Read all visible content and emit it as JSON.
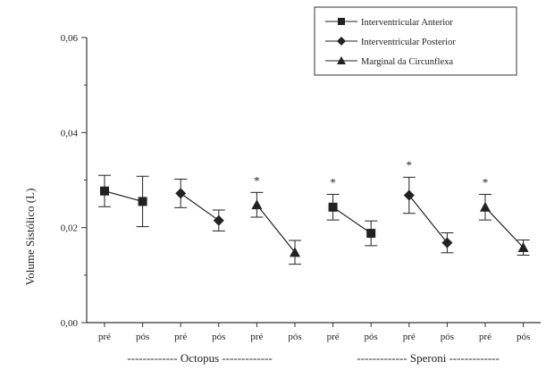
{
  "chart_data": {
    "type": "line",
    "ylabel": "Volume Sistólico (L)",
    "xlabel": "",
    "ylim": [
      0,
      0.06
    ],
    "y_ticks": [
      "0,00",
      "0,02",
      "0,04",
      "0,06"
    ],
    "y_tick_values": [
      0,
      0.02,
      0.04,
      0.06
    ],
    "categories": [
      "pré",
      "pós",
      "pré",
      "pós",
      "pré",
      "pós",
      "pré",
      "pós",
      "pré",
      "pós",
      "pré",
      "pós"
    ],
    "groups": [
      {
        "label": "------------- Octopus -------------",
        "from": 0,
        "to": 5
      },
      {
        "label": "------------- Speroni -------------",
        "from": 6,
        "to": 11
      }
    ],
    "legend_position": "top-right",
    "series": [
      {
        "name": "Interventricular Anterior",
        "marker": "square",
        "points": [
          {
            "x": 0,
            "y": 0.0277,
            "err": 0.0033
          },
          {
            "x": 1,
            "y": 0.0255,
            "err": 0.0053
          }
        ]
      },
      {
        "name": "Interventricular Posterior",
        "marker": "diamond",
        "points": [
          {
            "x": 2,
            "y": 0.0272,
            "err": 0.003
          },
          {
            "x": 3,
            "y": 0.0215,
            "err": 0.0022
          }
        ]
      },
      {
        "name": "Marginal da Circunflexa",
        "marker": "triangle",
        "points": [
          {
            "x": 4,
            "y": 0.0248,
            "err": 0.0026
          },
          {
            "x": 5,
            "y": 0.0148,
            "err": 0.0025
          }
        ]
      },
      {
        "name": "Interventricular Anterior",
        "marker": "square",
        "points": [
          {
            "x": 6,
            "y": 0.0243,
            "err": 0.0027
          },
          {
            "x": 7,
            "y": 0.0188,
            "err": 0.0026
          }
        ]
      },
      {
        "name": "Interventricular Posterior",
        "marker": "diamond",
        "points": [
          {
            "x": 8,
            "y": 0.0268,
            "err": 0.0038
          },
          {
            "x": 9,
            "y": 0.0168,
            "err": 0.0021
          }
        ]
      },
      {
        "name": "Marginal da Circunflexa",
        "marker": "triangle",
        "points": [
          {
            "x": 10,
            "y": 0.0243,
            "err": 0.0027
          },
          {
            "x": 11,
            "y": 0.0158,
            "err": 0.0016
          }
        ]
      }
    ],
    "annotations": [
      {
        "text": "*",
        "x": 4,
        "y": 0.0302
      },
      {
        "text": "*",
        "x": 6,
        "y": 0.0298
      },
      {
        "text": "*",
        "x": 8,
        "y": 0.0335
      },
      {
        "text": "*",
        "x": 10,
        "y": 0.0298
      }
    ],
    "legend": [
      {
        "name": "Interventricular Anterior",
        "marker": "square"
      },
      {
        "name": "Interventricular Posterior",
        "marker": "diamond"
      },
      {
        "name": "Marginal da Circunflexa",
        "marker": "triangle"
      }
    ],
    "colors": {
      "ink": "#222222",
      "axis": "#333333"
    }
  }
}
